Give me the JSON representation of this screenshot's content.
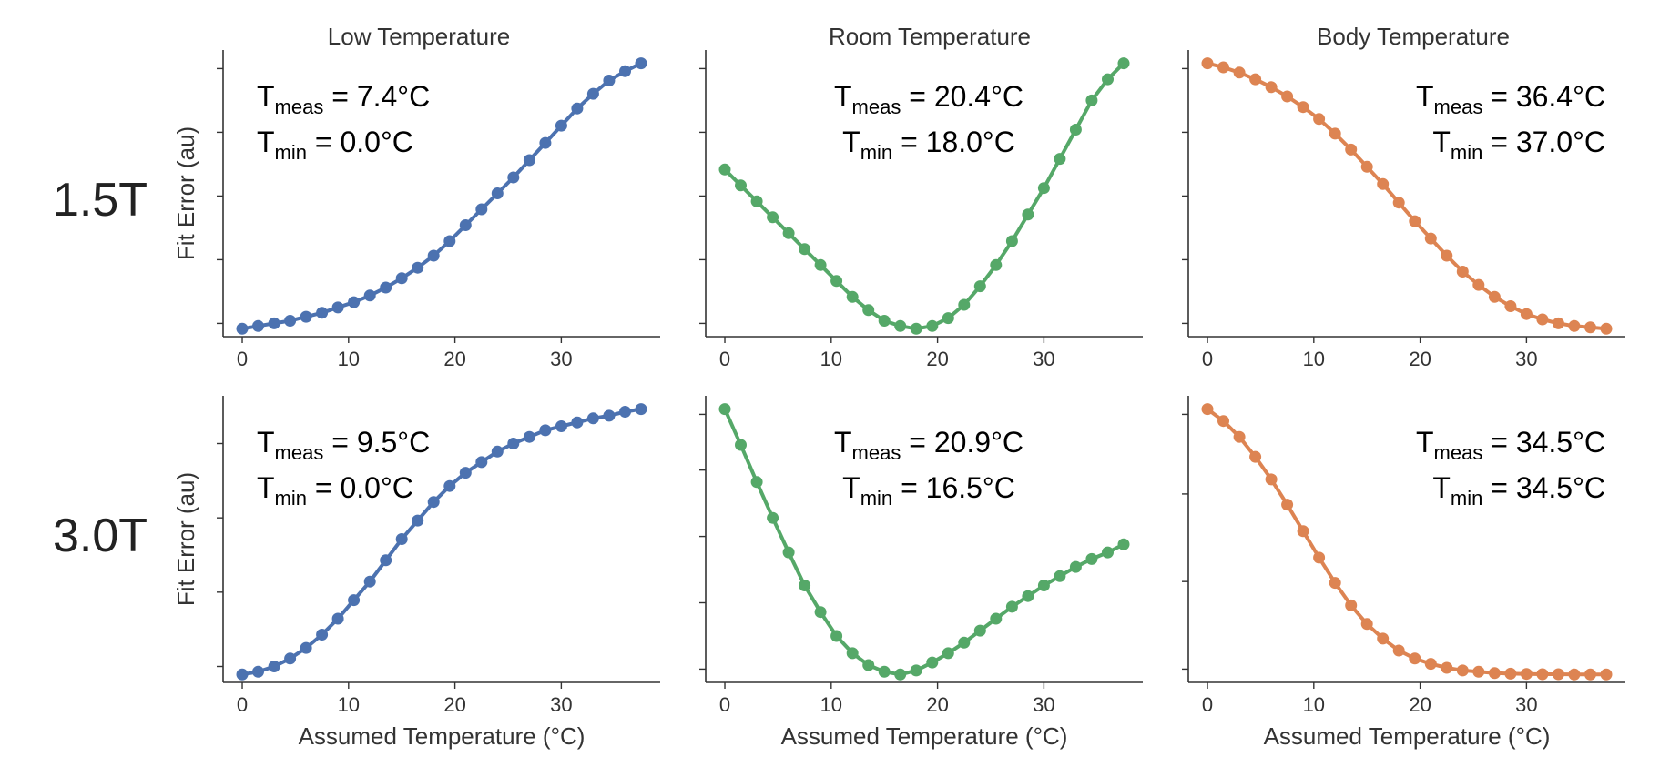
{
  "colors": {
    "low": "#4c72b0",
    "room": "#55a868",
    "body": "#dd8452"
  },
  "columns": [
    "Low Temperature",
    "Room Temperature",
    "Body Temperature"
  ],
  "rows": [
    "1.5T",
    "3.0T"
  ],
  "xlabel": "Assumed Temperature (°C)",
  "ylabel": "Fit Error (au)",
  "chart_data": [
    {
      "type": "line",
      "panel": "1.5T / Low Temperature",
      "title": "Low Temperature",
      "ylabel": "Fit Error (au)",
      "xlabel": "",
      "annotation": {
        "meas_label": "T",
        "meas_sub": "meas",
        "meas_value": " = 7.4°C",
        "min_label": "T",
        "min_sub": "min",
        "min_value": " = 0.0°C",
        "align": "left"
      },
      "x": [
        0,
        1.5,
        3,
        4.5,
        6,
        7.5,
        9,
        10.5,
        12,
        13.5,
        15,
        16.5,
        18,
        19.5,
        21,
        22.5,
        24,
        25.5,
        27,
        28.5,
        30,
        31.5,
        33,
        34.5,
        36,
        37.5
      ],
      "y": [
        0.0,
        0.01,
        0.02,
        0.03,
        0.045,
        0.06,
        0.08,
        0.1,
        0.125,
        0.155,
        0.19,
        0.23,
        0.275,
        0.33,
        0.39,
        0.45,
        0.51,
        0.57,
        0.635,
        0.7,
        0.765,
        0.83,
        0.885,
        0.935,
        0.97,
        1.0
      ],
      "xticks": [
        0,
        10,
        20,
        30
      ],
      "yticks": [
        0.02,
        0.26,
        0.5,
        0.74,
        0.98
      ],
      "xlim": [
        -1.8,
        39.3
      ],
      "ylim": [
        -0.03,
        1.05
      ],
      "color_key": "low"
    },
    {
      "type": "line",
      "panel": "1.5T / Room Temperature",
      "title": "Room Temperature",
      "ylabel": "",
      "xlabel": "",
      "annotation": {
        "meas_label": "T",
        "meas_sub": "meas",
        "meas_value": " = 20.4°C",
        "min_label": "T",
        "min_sub": "min",
        "min_value": " = 18.0°C",
        "align": "center"
      },
      "x": [
        0,
        1.5,
        3,
        4.5,
        6,
        7.5,
        9,
        10.5,
        12,
        13.5,
        15,
        16.5,
        18,
        19.5,
        21,
        22.5,
        24,
        25.5,
        27,
        28.5,
        30,
        31.5,
        33,
        34.5,
        36,
        37.5
      ],
      "y": [
        0.6,
        0.54,
        0.48,
        0.42,
        0.36,
        0.3,
        0.24,
        0.18,
        0.12,
        0.07,
        0.03,
        0.01,
        0.0,
        0.01,
        0.04,
        0.09,
        0.16,
        0.24,
        0.33,
        0.43,
        0.53,
        0.64,
        0.75,
        0.86,
        0.94,
        1.0
      ],
      "xticks": [
        0,
        10,
        20,
        30
      ],
      "yticks": [
        0.02,
        0.26,
        0.5,
        0.74,
        0.98
      ],
      "xlim": [
        -1.8,
        39.3
      ],
      "ylim": [
        -0.03,
        1.05
      ],
      "color_key": "room"
    },
    {
      "type": "line",
      "panel": "1.5T / Body Temperature",
      "title": "Body Temperature",
      "ylabel": "",
      "xlabel": "",
      "annotation": {
        "meas_label": "T",
        "meas_sub": "meas",
        "meas_value": " = 36.4°C",
        "min_label": "T",
        "min_sub": "min",
        "min_value": " = 37.0°C",
        "align": "right"
      },
      "x": [
        0,
        1.5,
        3,
        4.5,
        6,
        7.5,
        9,
        10.5,
        12,
        13.5,
        15,
        16.5,
        18,
        19.5,
        21,
        22.5,
        24,
        25.5,
        27,
        28.5,
        30,
        31.5,
        33,
        34.5,
        36,
        37.5
      ],
      "y": [
        1.0,
        0.985,
        0.965,
        0.94,
        0.91,
        0.875,
        0.835,
        0.79,
        0.735,
        0.675,
        0.61,
        0.545,
        0.475,
        0.405,
        0.34,
        0.275,
        0.215,
        0.165,
        0.12,
        0.085,
        0.055,
        0.035,
        0.02,
        0.01,
        0.005,
        0.0
      ],
      "xticks": [
        0,
        10,
        20,
        30
      ],
      "yticks": [
        0.02,
        0.26,
        0.5,
        0.74,
        0.98
      ],
      "xlim": [
        -1.8,
        39.3
      ],
      "ylim": [
        -0.03,
        1.05
      ],
      "color_key": "body"
    },
    {
      "type": "line",
      "panel": "3.0T / Low Temperature",
      "title": "",
      "ylabel": "Fit Error (au)",
      "xlabel": "Assumed Temperature (°C)",
      "annotation": {
        "meas_label": "T",
        "meas_sub": "meas",
        "meas_value": " = 9.5°C",
        "min_label": "T",
        "min_sub": "min",
        "min_value": " = 0.0°C",
        "align": "left"
      },
      "x": [
        0,
        1.5,
        3,
        4.5,
        6,
        7.5,
        9,
        10.5,
        12,
        13.5,
        15,
        16.5,
        18,
        19.5,
        21,
        22.5,
        24,
        25.5,
        27,
        28.5,
        30,
        31.5,
        33,
        34.5,
        36,
        37.5
      ],
      "y": [
        0.0,
        0.01,
        0.03,
        0.06,
        0.1,
        0.15,
        0.21,
        0.28,
        0.35,
        0.43,
        0.51,
        0.58,
        0.65,
        0.71,
        0.76,
        0.8,
        0.84,
        0.87,
        0.895,
        0.92,
        0.935,
        0.95,
        0.965,
        0.975,
        0.99,
        1.0
      ],
      "xticks": [
        0,
        10,
        20,
        30
      ],
      "yticks": [
        0.03,
        0.31,
        0.59,
        0.87
      ],
      "xlim": [
        -1.8,
        39.3
      ],
      "ylim": [
        -0.03,
        1.05
      ],
      "color_key": "low"
    },
    {
      "type": "line",
      "panel": "3.0T / Room Temperature",
      "title": "",
      "ylabel": "",
      "xlabel": "Assumed Temperature (°C)",
      "annotation": {
        "meas_label": "T",
        "meas_sub": "meas",
        "meas_value": " = 20.9°C",
        "min_label": "T",
        "min_sub": "min",
        "min_value": " = 16.5°C",
        "align": "center"
      },
      "x": [
        0,
        1.5,
        3,
        4.5,
        6,
        7.5,
        9,
        10.5,
        12,
        13.5,
        15,
        16.5,
        18,
        19.5,
        21,
        22.5,
        24,
        25.5,
        27,
        28.5,
        30,
        31.5,
        33,
        34.5,
        36,
        37.5
      ],
      "y": [
        1.0,
        0.865,
        0.725,
        0.59,
        0.46,
        0.335,
        0.235,
        0.145,
        0.08,
        0.035,
        0.01,
        0.0,
        0.015,
        0.045,
        0.08,
        0.12,
        0.165,
        0.21,
        0.255,
        0.295,
        0.335,
        0.37,
        0.405,
        0.435,
        0.46,
        0.49
      ],
      "xticks": [
        0,
        10,
        20,
        30
      ],
      "yticks": [
        0.02,
        0.27,
        0.52,
        0.77,
        0.98
      ],
      "xlim": [
        -1.8,
        39.3
      ],
      "ylim": [
        -0.03,
        1.05
      ],
      "color_key": "room"
    },
    {
      "type": "line",
      "panel": "3.0T / Body Temperature",
      "title": "",
      "ylabel": "",
      "xlabel": "Assumed Temperature (°C)",
      "annotation": {
        "meas_label": "T",
        "meas_sub": "meas",
        "meas_value": " = 34.5°C",
        "min_label": "T",
        "min_sub": "min",
        "min_value": " = 34.5°C",
        "align": "right"
      },
      "x": [
        0,
        1.5,
        3,
        4.5,
        6,
        7.5,
        9,
        10.5,
        12,
        13.5,
        15,
        16.5,
        18,
        19.5,
        21,
        22.5,
        24,
        25.5,
        27,
        28.5,
        30,
        31.5,
        33,
        34.5,
        36,
        37.5
      ],
      "y": [
        1.0,
        0.955,
        0.895,
        0.82,
        0.735,
        0.64,
        0.54,
        0.44,
        0.345,
        0.26,
        0.19,
        0.135,
        0.09,
        0.06,
        0.04,
        0.025,
        0.015,
        0.01,
        0.005,
        0.003,
        0.002,
        0.001,
        0.001,
        0.0,
        0.0,
        0.0
      ],
      "xticks": [
        0,
        10,
        20,
        30
      ],
      "yticks": [
        0.02,
        0.35,
        0.68,
        0.98
      ],
      "xlim": [
        -1.8,
        39.3
      ],
      "ylim": [
        -0.03,
        1.05
      ],
      "color_key": "body"
    }
  ]
}
